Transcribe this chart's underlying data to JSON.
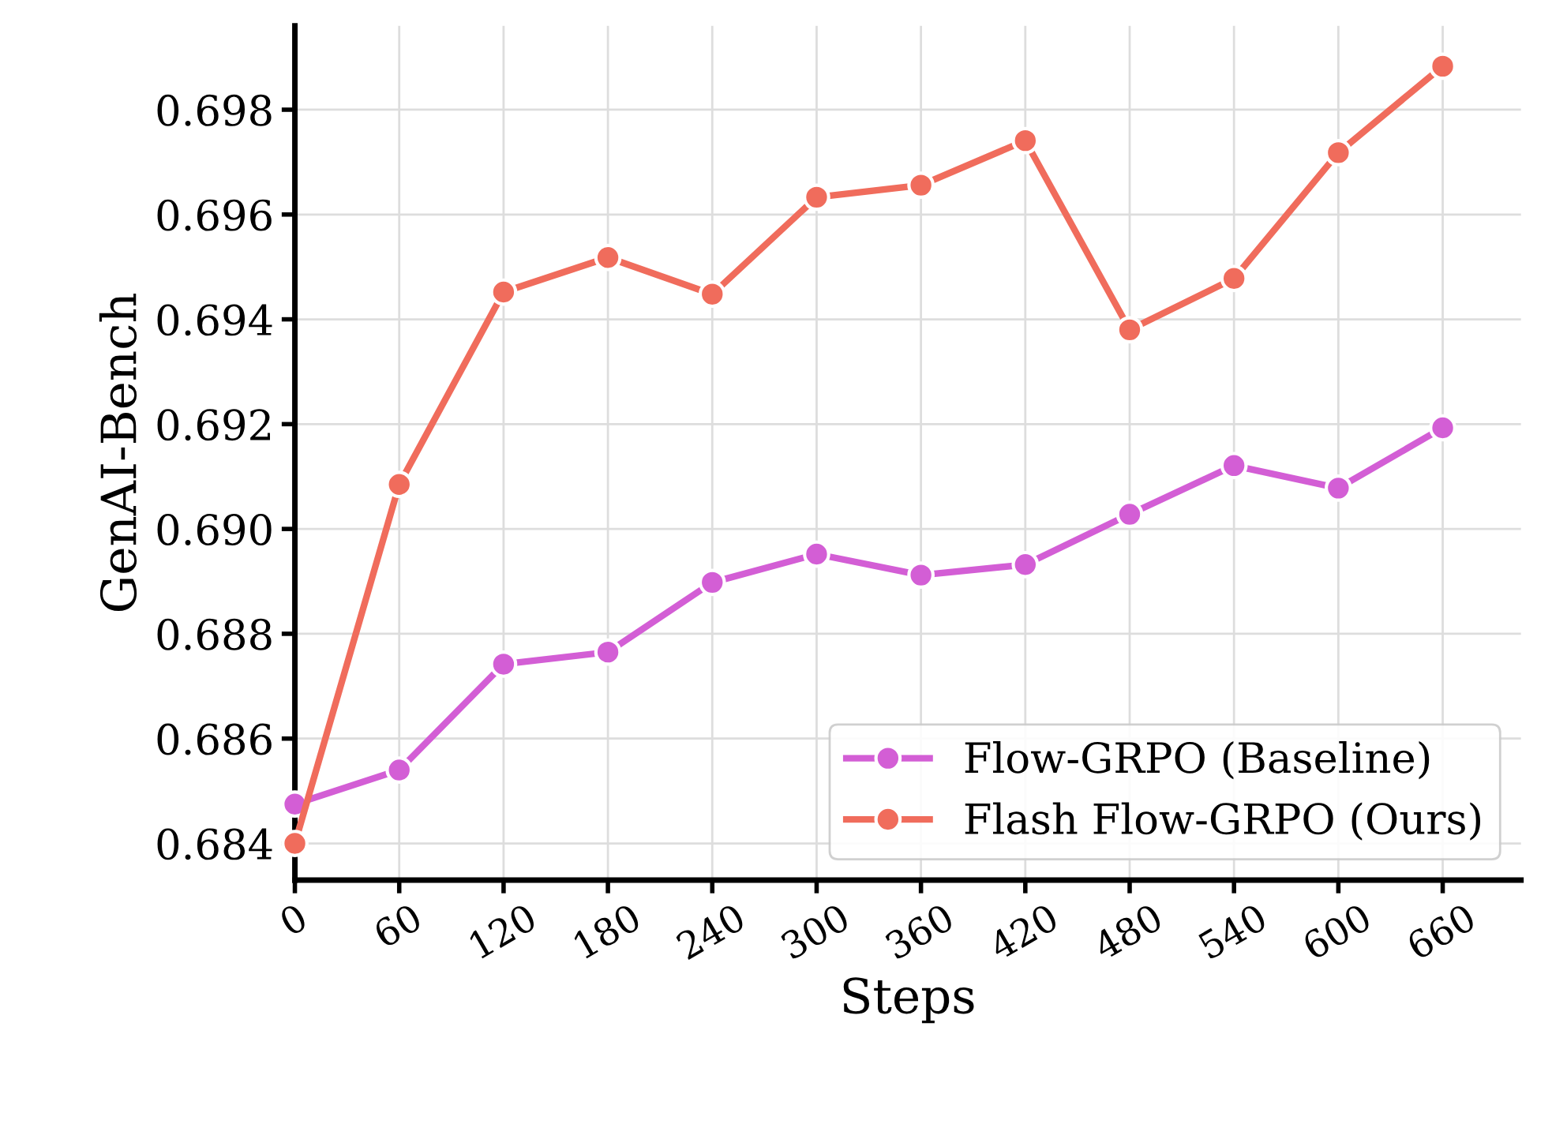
{
  "chart_data": {
    "type": "line",
    "xlabel": "Steps",
    "ylabel": "GenAI-Bench",
    "x": [
      0,
      60,
      120,
      180,
      240,
      300,
      360,
      420,
      480,
      540,
      600,
      660
    ],
    "series": [
      {
        "name": "Flow-GRPO (Baseline)",
        "color": "#d35ed5",
        "values": [
          0.68475,
          0.6854,
          0.68742,
          0.68765,
          0.68898,
          0.68952,
          0.68912,
          0.68932,
          0.69028,
          0.69121,
          0.69078,
          0.69193
        ]
      },
      {
        "name": "Flash Flow-GRPO (Ours)",
        "color": "#f06c5c",
        "values": [
          0.684,
          0.69085,
          0.69452,
          0.69518,
          0.69448,
          0.69633,
          0.69656,
          0.69741,
          0.6938,
          0.69478,
          0.69718,
          0.69883
        ]
      }
    ],
    "xlim": [
      0,
      705
    ],
    "xticks": [
      0,
      60,
      120,
      180,
      240,
      300,
      360,
      420,
      480,
      540,
      600,
      660
    ],
    "ylim": [
      0.6833,
      0.6996
    ],
    "yticks": [
      {
        "value": 0.684,
        "label": "0.684"
      },
      {
        "value": 0.686,
        "label": "0.686"
      },
      {
        "value": 0.688,
        "label": "0.688"
      },
      {
        "value": 0.69,
        "label": "0.690"
      },
      {
        "value": 0.692,
        "label": "0.692"
      },
      {
        "value": 0.694,
        "label": "0.694"
      },
      {
        "value": 0.696,
        "label": "0.696"
      },
      {
        "value": 0.698,
        "label": "0.698"
      }
    ],
    "grid": true,
    "legend": "bottom right",
    "marker": "circle",
    "line_style": "solid"
  }
}
